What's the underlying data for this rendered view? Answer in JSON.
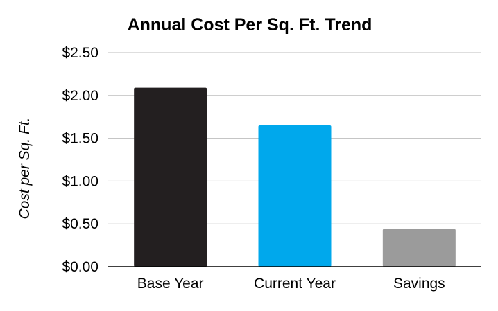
{
  "chart_data": {
    "type": "bar",
    "title": "Annual Cost Per Sq. Ft. Trend",
    "xlabel": "",
    "ylabel": "Cost per Sq. Ft.",
    "categories": [
      "Base Year",
      "Current Year",
      "Savings"
    ],
    "values": [
      2.09,
      1.65,
      0.44
    ],
    "bar_colors": [
      "#231f20",
      "#00a8ec",
      "#9b9b9b"
    ],
    "ylim": [
      0,
      2.5
    ],
    "yticks": [
      0,
      0.5,
      1,
      1.5,
      2,
      2.5
    ],
    "ytick_labels": [
      "$0.00",
      "$0.50",
      "$1.00",
      "$1.50",
      "$2.00",
      "$2.50"
    ],
    "grid": true,
    "legend": "none"
  }
}
